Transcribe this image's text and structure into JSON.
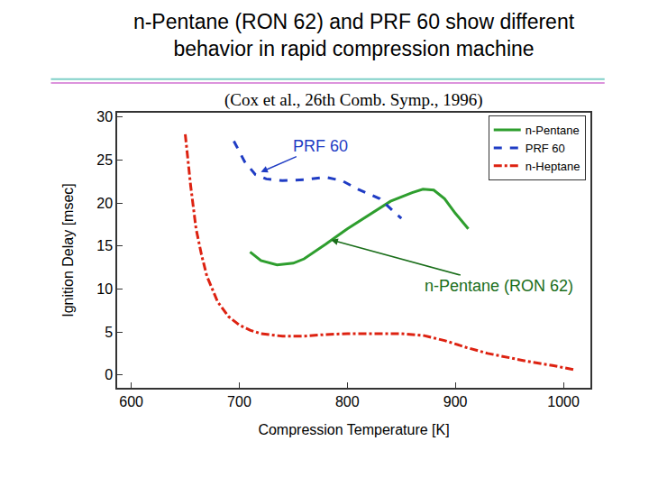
{
  "chart_data": {
    "type": "line",
    "title": "n-Pentane (RON 62) and PRF 60 show different behavior in rapid compression machine",
    "subtitle": "(Cox et al., 26th Comb. Symp., 1996)",
    "x_label": "Compression Temperature [K]",
    "y_label": "Ignition Delay [msec]",
    "xlim": [
      587,
      1025
    ],
    "ylim": [
      -1.5,
      30.5
    ],
    "xticks": [
      600,
      700,
      800,
      900,
      1000
    ],
    "yticks": [
      0,
      5,
      10,
      15,
      20,
      25,
      30
    ],
    "grid": false,
    "legend": "upper right",
    "series": [
      {
        "name": "n-Pentane",
        "color": "#2e9e2e",
        "line_style": "solid",
        "x": [
          710,
          720,
          735,
          750,
          760,
          780,
          800,
          820,
          840,
          860,
          870,
          880,
          890,
          900,
          912
        ],
        "values": [
          14.3,
          13.3,
          12.8,
          13.0,
          13.5,
          15.2,
          17.0,
          18.6,
          20.2,
          21.2,
          21.6,
          21.5,
          20.5,
          18.8,
          17.0
        ]
      },
      {
        "name": "PRF 60",
        "color": "#1f3cc4",
        "line_style": "dashed",
        "x": [
          695,
          705,
          715,
          725,
          740,
          760,
          780,
          795,
          810,
          830,
          850
        ],
        "values": [
          27.2,
          24.8,
          23.3,
          22.8,
          22.6,
          22.7,
          23.0,
          22.6,
          21.6,
          20.5,
          18.2
        ]
      },
      {
        "name": "n-Heptane",
        "color": "#dd2211",
        "line_style": "dashdot",
        "x": [
          650,
          655,
          660,
          665,
          670,
          680,
          690,
          700,
          710,
          720,
          740,
          760,
          780,
          800,
          820,
          850,
          870,
          890,
          910,
          930,
          950,
          970,
          990,
          1010
        ],
        "values": [
          28.0,
          22.0,
          17.0,
          14.0,
          11.5,
          8.5,
          6.8,
          5.8,
          5.2,
          4.8,
          4.5,
          4.5,
          4.7,
          4.8,
          4.8,
          4.8,
          4.6,
          4.0,
          3.2,
          2.5,
          2.0,
          1.5,
          1.1,
          0.6
        ]
      }
    ],
    "annotations": [
      {
        "text": "PRF 60",
        "color": "#1f3cc4",
        "x": 720,
        "y": 23.6,
        "text_x": 775,
        "text_y": 26.6
      },
      {
        "text": "n-Pentane (RON 62)",
        "color": "#1a6e1a",
        "x": 785,
        "y": 15.7,
        "text_x": 940,
        "text_y": 10.4
      }
    ]
  }
}
